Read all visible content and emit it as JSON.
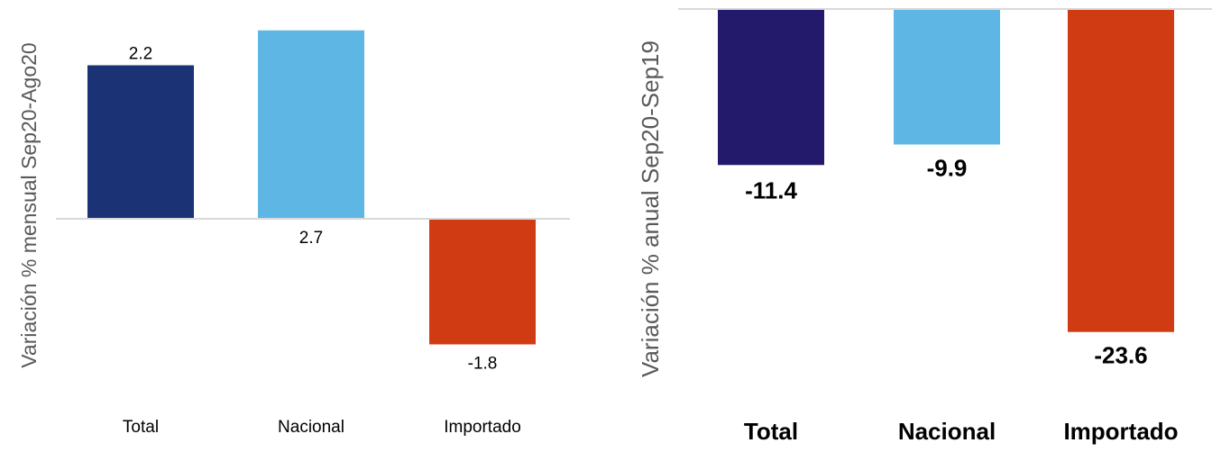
{
  "colors": {
    "total": "#1b3274",
    "total_anual": "#241a6c",
    "nacional": "#5eb6e4",
    "importado": "#d03b14",
    "axis_line": "#d9d9d9",
    "ylabel": "#595959",
    "text": "#000000"
  },
  "chart_data": [
    {
      "type": "bar",
      "ylabel": "Variación % mensual Sep20-Ago20",
      "categories": [
        "Total",
        "Nacional",
        "Importado"
      ],
      "values": [
        2.2,
        2.7,
        -1.8
      ],
      "data_labels": [
        "2.2",
        "2.7",
        "-1.8"
      ],
      "colors": [
        "#1b3274",
        "#5eb6e4",
        "#d03b14"
      ],
      "ylim": [
        -2.1,
        2.9
      ],
      "grid": false,
      "legend": "none"
    },
    {
      "type": "bar",
      "ylabel": "Variación % anual Sep20-Sep19",
      "categories": [
        "Total",
        "Nacional",
        "Importado"
      ],
      "values": [
        -11.4,
        -9.9,
        -23.6
      ],
      "data_labels": [
        "-11.4",
        "-9.9",
        "-23.6"
      ],
      "colors": [
        "#241a6c",
        "#5eb6e4",
        "#d03b14"
      ],
      "ylim": [
        -25,
        0
      ],
      "grid": false,
      "legend": "none"
    }
  ]
}
